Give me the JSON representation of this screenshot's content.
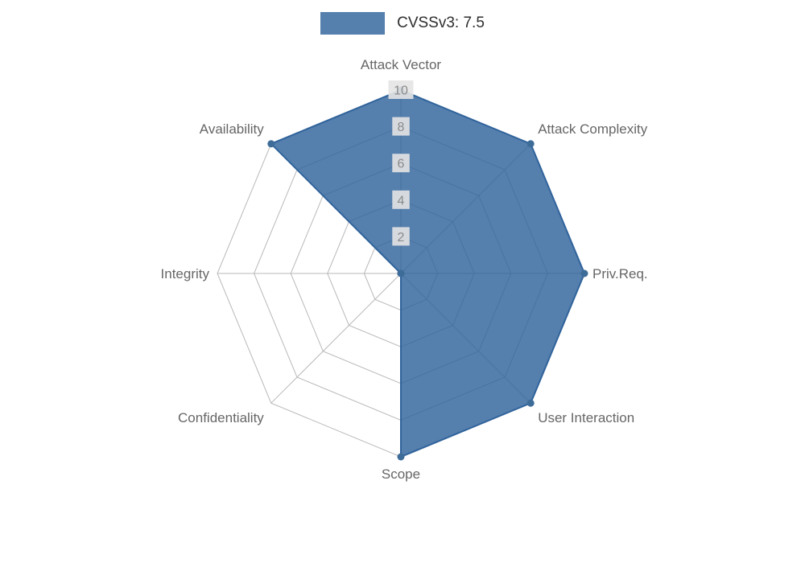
{
  "legend": {
    "label": "CVSSv3: 7.5"
  },
  "chart_data": {
    "type": "radar",
    "categories": [
      "Attack Vector",
      "Attack Complexity",
      "Priv.Req.",
      "User Interaction",
      "Scope",
      "Confidentiality",
      "Integrity",
      "Availability"
    ],
    "series": [
      {
        "name": "CVSSv3: 7.5",
        "values": [
          10,
          10,
          10,
          10,
          10,
          0,
          0,
          10
        ]
      }
    ],
    "ticks": [
      2,
      4,
      6,
      8,
      10
    ],
    "rmax": 10,
    "grid": true,
    "legend_position": "top",
    "colors": {
      "fill": "#30639b",
      "fill_opacity": 0.82,
      "stroke": "#30639b",
      "point": "#3e6c99",
      "grid": "#b9b9b9",
      "axis_label": "#666666",
      "tick_text": "#8a8a8a",
      "tick_backdrop": "rgba(228,228,228,0.9)",
      "legend_text": "#2e2e2e"
    }
  }
}
